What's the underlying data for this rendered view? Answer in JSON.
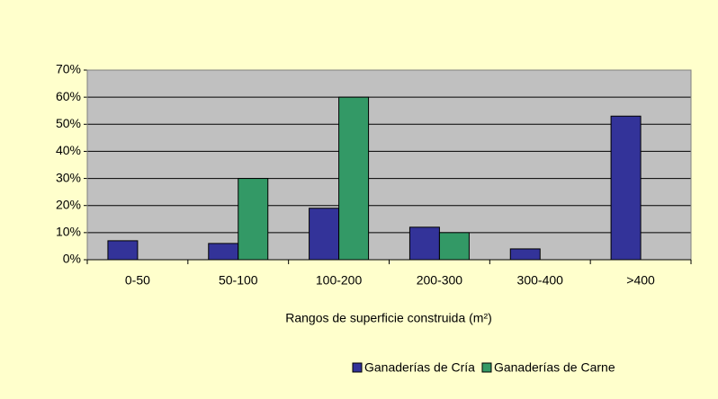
{
  "chart_data": {
    "type": "bar",
    "categories": [
      "0-50",
      "50-100",
      "100-200",
      "200-300",
      "300-400",
      ">400"
    ],
    "series": [
      {
        "name": "Ganaderías de Cría",
        "color": "#333399",
        "values": [
          7,
          6,
          19,
          12,
          4,
          53
        ]
      },
      {
        "name": "Ganaderías de Carne",
        "color": "#339966",
        "values": [
          0,
          30,
          60,
          10,
          0,
          0
        ]
      }
    ],
    "x_label": "Rangos de superficie construida (m²)",
    "ylim": [
      0,
      70
    ],
    "yticks": [
      {
        "value": 0,
        "label": "0%"
      },
      {
        "value": 10,
        "label": "10%"
      },
      {
        "value": 20,
        "label": "20%"
      },
      {
        "value": 30,
        "label": "30%"
      },
      {
        "value": 40,
        "label": "40%"
      },
      {
        "value": 50,
        "label": "50%"
      },
      {
        "value": 60,
        "label": "60%"
      },
      {
        "value": 70,
        "label": "70%"
      }
    ],
    "grid": true,
    "legend": "bottom"
  }
}
